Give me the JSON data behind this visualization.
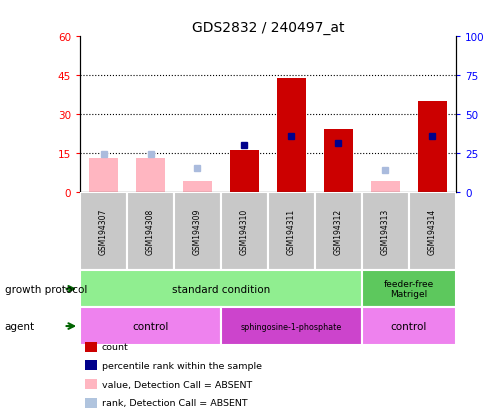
{
  "title": "GDS2832 / 240497_at",
  "samples": [
    "GSM194307",
    "GSM194308",
    "GSM194309",
    "GSM194310",
    "GSM194311",
    "GSM194312",
    "GSM194313",
    "GSM194314"
  ],
  "count_red": [
    null,
    null,
    null,
    16,
    44,
    24,
    null,
    35
  ],
  "count_pink": [
    13,
    13,
    4,
    null,
    null,
    null,
    4,
    null
  ],
  "rank_blue_dark": [
    null,
    null,
    null,
    30,
    36,
    31,
    null,
    36
  ],
  "rank_blue_light": [
    24,
    24,
    15,
    null,
    null,
    null,
    14,
    null
  ],
  "ylim_left": [
    0,
    60
  ],
  "ylim_right": [
    0,
    100
  ],
  "yticks_left": [
    0,
    15,
    30,
    45,
    60
  ],
  "yticks_right": [
    0,
    25,
    50,
    75,
    100
  ],
  "yticklabels_right": [
    "0",
    "25",
    "50",
    "75",
    "100%"
  ],
  "bar_width": 0.6,
  "legend_items": [
    {
      "label": "count",
      "color": "#CC0000"
    },
    {
      "label": "percentile rank within the sample",
      "color": "#00008B"
    },
    {
      "label": "value, Detection Call = ABSENT",
      "color": "#FFB6C1"
    },
    {
      "label": "rank, Detection Call = ABSENT",
      "color": "#B0C4DE"
    }
  ],
  "left_label_growth": "growth protocol",
  "left_label_agent": "agent",
  "color_gray": "#C8C8C8",
  "color_green_light": "#90EE90",
  "color_green_dark": "#5DC85D",
  "color_pink_light": "#EE82EE",
  "color_pink_dark": "#CC44CC",
  "color_red_bar": "#CC0000",
  "color_pink_bar": "#FFB6C1",
  "color_blue_dark": "#00008B",
  "color_blue_light": "#AABBDD"
}
